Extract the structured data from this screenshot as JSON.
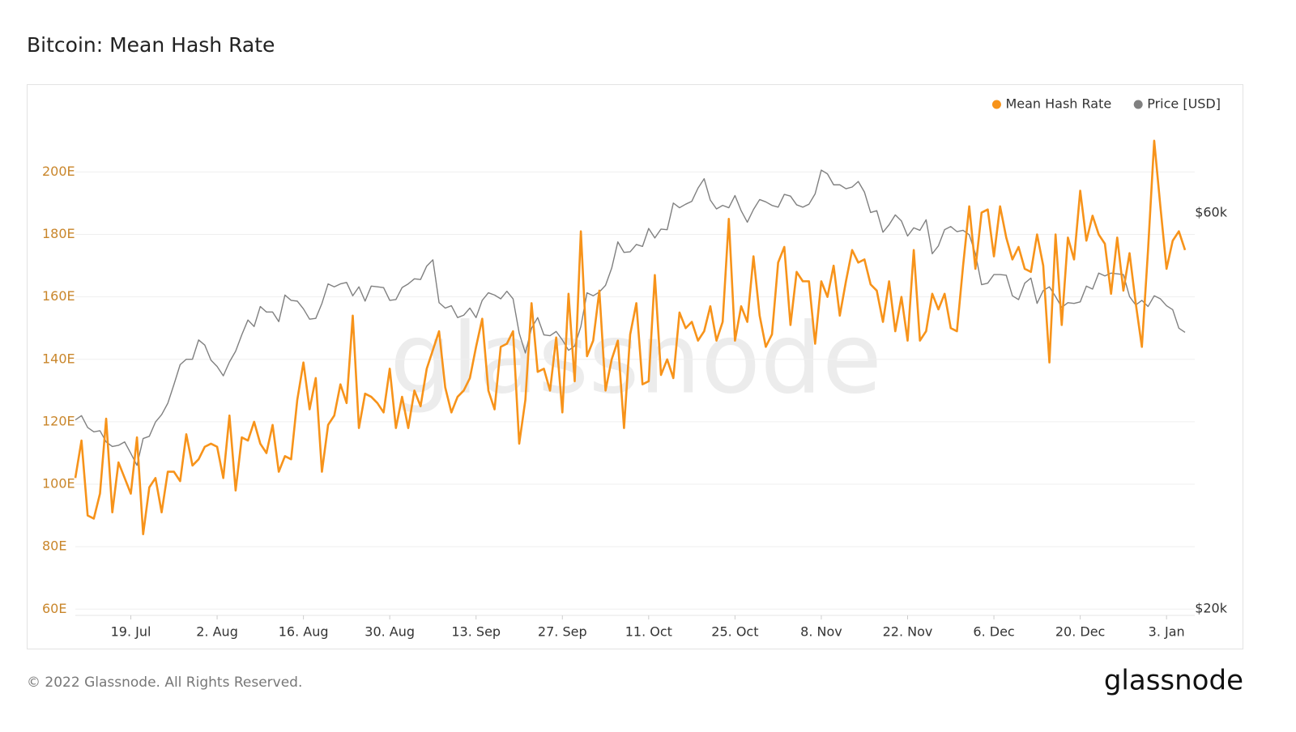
{
  "chart_data": {
    "type": "line",
    "title": "Bitcoin: Mean Hash Rate",
    "watermark": "glassnode",
    "grid": true,
    "legend": "top-right",
    "categories": [
      null,
      null,
      null,
      null,
      null,
      null,
      null,
      null,
      null,
      "19. Jul",
      null,
      null,
      null,
      null,
      null,
      null,
      null,
      null,
      null,
      null,
      null,
      null,
      null,
      "2. Aug",
      null,
      null,
      null,
      null,
      null,
      null,
      null,
      null,
      null,
      null,
      null,
      null,
      null,
      "16. Aug",
      null,
      null,
      null,
      null,
      null,
      null,
      null,
      null,
      null,
      null,
      null,
      null,
      null,
      "30. Aug",
      null,
      null,
      null,
      null,
      null,
      null,
      null,
      null,
      null,
      null,
      null,
      null,
      null,
      "13. Sep",
      null,
      null,
      null,
      null,
      null,
      null,
      null,
      null,
      null,
      null,
      null,
      null,
      null,
      "27. Sep",
      null,
      null,
      null,
      null,
      null,
      null,
      null,
      null,
      null,
      null,
      null,
      null,
      null,
      "11. Oct",
      null,
      null,
      null,
      null,
      null,
      null,
      null,
      null,
      null,
      null,
      null,
      null,
      null,
      "25. Oct",
      null,
      null,
      null,
      null,
      null,
      null,
      null,
      null,
      null,
      null,
      null,
      null,
      null,
      "8. Nov",
      null,
      null,
      null,
      null,
      null,
      null,
      null,
      null,
      null,
      null,
      null,
      null,
      null,
      "22. Nov",
      null,
      null,
      null,
      null,
      null,
      null,
      null,
      null,
      null,
      null,
      null,
      null,
      null,
      "6. Dec",
      null,
      null,
      null,
      null,
      null,
      null,
      null,
      null,
      null,
      null,
      null,
      null,
      null,
      "20. Dec",
      null,
      null,
      null,
      null,
      null,
      null,
      null,
      null,
      null,
      null,
      null,
      null,
      null,
      "3. Jan",
      null,
      null,
      null
    ],
    "series": [
      {
        "name": "Mean Hash Rate",
        "color": "#f7931a",
        "axis": "y",
        "values": [
          102,
          114,
          90,
          89,
          97,
          121,
          91,
          107,
          102,
          97,
          115,
          84,
          99,
          102,
          91,
          104,
          104,
          101,
          116,
          106,
          108,
          112,
          113,
          112,
          102,
          122,
          98,
          115,
          114,
          120,
          113,
          110,
          119,
          104,
          109,
          108,
          127,
          139,
          124,
          134,
          104,
          119,
          122,
          132,
          126,
          154,
          118,
          129,
          128,
          126,
          123,
          137,
          118,
          128,
          118,
          130,
          125,
          137,
          143,
          149,
          131,
          123,
          128,
          130,
          134,
          144,
          153,
          130,
          124,
          144,
          145,
          149,
          113,
          127,
          158,
          136,
          137,
          130,
          147,
          123,
          161,
          133,
          181,
          141,
          146,
          162,
          130,
          140,
          146,
          118,
          148,
          158,
          132,
          133,
          167,
          135,
          140,
          134,
          155,
          150,
          152,
          146,
          149,
          157,
          146,
          152,
          185,
          146,
          157,
          152,
          173,
          154,
          144,
          148,
          171,
          176,
          151,
          168,
          165,
          165,
          145,
          165,
          160,
          170,
          154,
          165,
          175,
          171,
          172,
          164,
          162,
          152,
          165,
          149,
          160,
          146,
          175,
          146,
          149,
          161,
          156,
          161,
          150,
          149,
          170,
          189,
          169,
          187,
          188,
          173,
          189,
          179,
          172,
          176,
          169,
          168,
          180,
          170,
          139,
          180,
          151,
          179,
          172,
          194,
          178,
          186,
          180,
          177,
          161,
          179,
          162,
          174,
          158,
          144,
          175,
          210,
          189,
          169,
          178,
          181,
          175
        ]
      },
      {
        "name": "Price [USD]",
        "color": "#808080",
        "axis": "y2",
        "values": [
          33800,
          34200,
          33100,
          32700,
          32800,
          31800,
          31400,
          31500,
          31800,
          30800,
          29800,
          32100,
          32300,
          33600,
          34300,
          35400,
          37300,
          39400,
          40000,
          40000,
          42200,
          41600,
          39900,
          39200,
          38200,
          39700,
          40900,
          42800,
          44600,
          43800,
          46300,
          45600,
          45600,
          44400,
          47800,
          47100,
          47000,
          46000,
          44700,
          44800,
          46700,
          49300,
          48900,
          49300,
          49500,
          47700,
          48900,
          47000,
          49000,
          48900,
          48800,
          47100,
          47200,
          48800,
          49300,
          50000,
          49900,
          51800,
          52700,
          46800,
          46100,
          46400,
          44900,
          45200,
          46100,
          44900,
          47100,
          48100,
          47800,
          47300,
          48300,
          47300,
          43000,
          40700,
          43600,
          44900,
          42800,
          42700,
          43200,
          42200,
          41000,
          41500,
          43800,
          48100,
          47700,
          48200,
          49100,
          51500,
          55400,
          53800,
          53900,
          55000,
          54700,
          57500,
          56000,
          57400,
          57300,
          61700,
          60900,
          61500,
          62000,
          64300,
          66000,
          62200,
          60700,
          61300,
          60900,
          63000,
          60400,
          58500,
          60600,
          62300,
          61900,
          61300,
          61000,
          63200,
          62900,
          61400,
          61000,
          61500,
          63300,
          67600,
          66900,
          64900,
          64900,
          64200,
          64500,
          65500,
          63600,
          60100,
          60400,
          56900,
          58100,
          59700,
          58700,
          56300,
          57600,
          57200,
          58900,
          53600,
          54800,
          57300,
          57800,
          57000,
          57200,
          56500,
          53600,
          49200,
          49400,
          50600,
          50600,
          50500,
          47700,
          47200,
          49400,
          50100,
          46700,
          48400,
          48900,
          47600,
          46200,
          46800,
          46700,
          46900,
          49000,
          48600,
          50800,
          50400,
          50800,
          50700,
          50600,
          47600,
          46500,
          47100,
          46300,
          47700,
          47300,
          46400,
          45900,
          43600,
          43100
        ]
      }
    ],
    "ylim": [
      58,
      218
    ],
    "yticks": [
      {
        "value": 60,
        "label": "60E"
      },
      {
        "value": 80,
        "label": "80E"
      },
      {
        "value": 100,
        "label": "100E"
      },
      {
        "value": 120,
        "label": "120E"
      },
      {
        "value": 140,
        "label": "140E"
      },
      {
        "value": 160,
        "label": "160E"
      },
      {
        "value": 180,
        "label": "180E"
      },
      {
        "value": 200,
        "label": "200E"
      }
    ],
    "y2lim": [
      19650,
      78600
    ],
    "y2scale": "log",
    "y2ticks": [
      {
        "value": 20000,
        "label": "$20k"
      },
      {
        "value": 60000,
        "label": "$60k"
      }
    ]
  },
  "footer": {
    "copyright": "© 2022 Glassnode. All Rights Reserved.",
    "logo": "glassnode"
  }
}
